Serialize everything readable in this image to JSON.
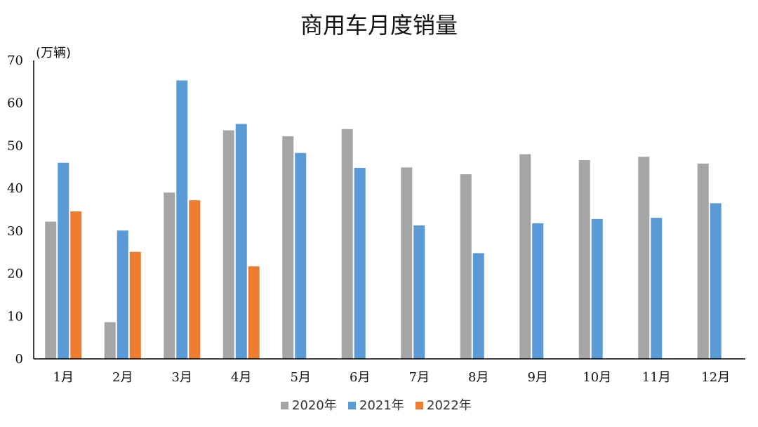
{
  "chart_data": {
    "type": "bar",
    "title": "商用车月度销量",
    "ylabel": "(万辆)",
    "xlabel": "",
    "categories": [
      "1月",
      "2月",
      "3月",
      "4月",
      "5月",
      "6月",
      "7月",
      "8月",
      "9月",
      "10月",
      "11月",
      "12月"
    ],
    "ylim": [
      0,
      70
    ],
    "yticks": [
      0,
      10,
      20,
      30,
      40,
      50,
      60,
      70
    ],
    "grid": false,
    "legend_position": "bottom-center",
    "series": [
      {
        "name": "2020年",
        "color": "#a5a5a5",
        "values": [
          32.2,
          8.6,
          39.0,
          53.6,
          52.2,
          53.9,
          44.9,
          43.3,
          48.0,
          46.6,
          47.4,
          45.8
        ]
      },
      {
        "name": "2021年",
        "color": "#5b9bd5",
        "values": [
          46.0,
          30.1,
          65.3,
          55.1,
          48.3,
          44.8,
          31.3,
          24.8,
          31.8,
          32.8,
          33.1,
          36.5
        ]
      },
      {
        "name": "2022年",
        "color": "#ed7d31",
        "values": [
          34.6,
          25.1,
          37.2,
          21.7,
          null,
          null,
          null,
          null,
          null,
          null,
          null,
          null
        ]
      }
    ]
  }
}
